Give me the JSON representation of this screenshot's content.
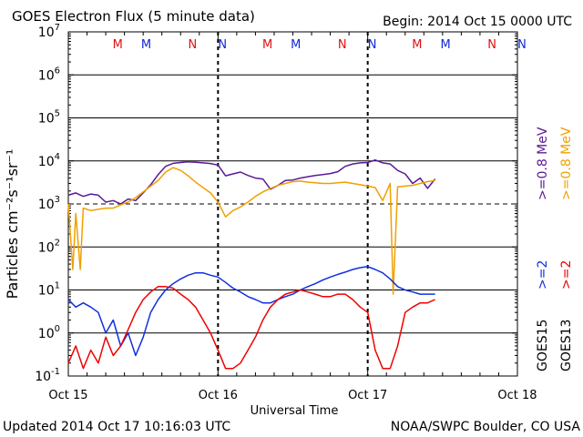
{
  "header": {
    "title": "GOES Electron Flux (5 minute data)",
    "begin": "Begin: 2014 Oct 15 0000 UTC"
  },
  "footer": {
    "updated": "Updated 2014 Oct 17 10:16:03 UTC",
    "credit": "NOAA/SWPC Boulder, CO USA"
  },
  "colors": {
    "goes15_08": "#5a1a96",
    "goes13_08": "#f0a000",
    "goes15_2": "#1030e0",
    "goes13_2": "#f00000",
    "marker_m": "#e01010",
    "marker_n": "#1028d8"
  },
  "markers": [
    {
      "label": "M",
      "day": 0.33,
      "color": "marker_m"
    },
    {
      "label": "M",
      "day": 0.52,
      "color": "marker_n"
    },
    {
      "label": "N",
      "day": 0.83,
      "color": "marker_m"
    },
    {
      "label": "N",
      "day": 1.03,
      "color": "marker_n"
    },
    {
      "label": "M",
      "day": 1.33,
      "color": "marker_m"
    },
    {
      "label": "M",
      "day": 1.52,
      "color": "marker_n"
    },
    {
      "label": "N",
      "day": 1.83,
      "color": "marker_m"
    },
    {
      "label": "N",
      "day": 2.03,
      "color": "marker_n"
    },
    {
      "label": "M",
      "day": 2.33,
      "color": "marker_m"
    },
    {
      "label": "M",
      "day": 2.52,
      "color": "marker_n"
    },
    {
      "label": "N",
      "day": 2.83,
      "color": "marker_m"
    },
    {
      "label": "N",
      "day": 3.03,
      "color": "marker_n"
    }
  ],
  "chart_data": {
    "type": "line",
    "xlabel": "Universal Time",
    "ylabel": "Particles cm⁻²s⁻¹sr⁻¹",
    "x_units": "days since 2014 Oct 15 0000 UTC",
    "xlim": [
      0,
      3
    ],
    "x_tick_labels": [
      "Oct 15",
      "Oct 16",
      "Oct 17",
      "Oct 18"
    ],
    "y_scale": "log",
    "ylim": [
      0.1,
      10000000
    ],
    "y_tick_labels": [
      {
        "base": "10",
        "exp": "-1"
      },
      {
        "base": "10",
        "exp": "0"
      },
      {
        "base": "10",
        "exp": "1"
      },
      {
        "base": "10",
        "exp": "2"
      },
      {
        "base": "10",
        "exp": "3"
      },
      {
        "base": "10",
        "exp": "4"
      },
      {
        "base": "10",
        "exp": "5"
      },
      {
        "base": "10",
        "exp": "6"
      },
      {
        "base": "10",
        "exp": "7"
      }
    ],
    "grid": "horizontal lines at each decade; dashed at 10^3 (alert threshold)",
    "legend_position": "right, vertical text",
    "legend": {
      "goes15_label": "GOES15",
      "goes13_label": "GOES13",
      "goes15_08": ">=0.8 MeV",
      "goes13_08": ">=0.8 MeV",
      "goes15_2": ">=2",
      "goes13_2": ">=2"
    },
    "series": [
      {
        "name": "GOES15 >=0.8 MeV",
        "color": "goes15_08",
        "x": [
          0.0,
          0.05,
          0.1,
          0.15,
          0.2,
          0.25,
          0.3,
          0.35,
          0.4,
          0.45,
          0.5,
          0.55,
          0.6,
          0.65,
          0.7,
          0.75,
          0.8,
          0.85,
          0.9,
          0.95,
          1.0,
          1.05,
          1.1,
          1.15,
          1.2,
          1.25,
          1.3,
          1.35,
          1.4,
          1.45,
          1.5,
          1.55,
          1.6,
          1.65,
          1.7,
          1.75,
          1.8,
          1.85,
          1.9,
          1.95,
          2.0,
          2.05,
          2.1,
          2.15,
          2.2,
          2.25,
          2.3,
          2.35,
          2.4,
          2.45
        ],
        "y": [
          1600,
          1800,
          1500,
          1700,
          1600,
          1100,
          1200,
          1000,
          1300,
          1200,
          1800,
          2800,
          4800,
          7500,
          8800,
          9200,
          9500,
          9300,
          9000,
          8700,
          8000,
          4500,
          5000,
          5500,
          4600,
          4000,
          3800,
          2200,
          2700,
          3500,
          3600,
          4000,
          4300,
          4600,
          4800,
          5100,
          5600,
          7500,
          8500,
          9000,
          9200,
          10500,
          9000,
          8500,
          6000,
          5000,
          3000,
          4000,
          2300,
          3800
        ]
      },
      {
        "name": "GOES13 >=0.8 MeV",
        "color": "goes13_08",
        "x": [
          0.0,
          0.03,
          0.05,
          0.08,
          0.1,
          0.15,
          0.2,
          0.25,
          0.3,
          0.35,
          0.4,
          0.45,
          0.5,
          0.55,
          0.6,
          0.65,
          0.7,
          0.75,
          0.8,
          0.85,
          0.9,
          0.95,
          1.0,
          1.05,
          1.1,
          1.15,
          1.2,
          1.25,
          1.3,
          1.35,
          1.4,
          1.45,
          1.5,
          1.55,
          1.6,
          1.65,
          1.7,
          1.75,
          1.8,
          1.85,
          1.9,
          1.95,
          2.0,
          2.05,
          2.1,
          2.15,
          2.17,
          2.2,
          2.25,
          2.3,
          2.35,
          2.4,
          2.45
        ],
        "y": [
          1000,
          30,
          600,
          30,
          800,
          700,
          750,
          800,
          800,
          950,
          1100,
          1400,
          1900,
          2600,
          3500,
          5500,
          7000,
          6000,
          4500,
          3200,
          2400,
          1800,
          1100,
          500,
          700,
          850,
          1100,
          1500,
          1900,
          2300,
          2700,
          3000,
          3300,
          3400,
          3200,
          3100,
          3000,
          3000,
          3100,
          3200,
          3000,
          2800,
          2600,
          2400,
          1200,
          3000,
          8,
          2500,
          2600,
          2700,
          3000,
          3300,
          3500
        ]
      },
      {
        "name": "GOES15 >=2",
        "color": "goes15_2",
        "x": [
          0.0,
          0.05,
          0.1,
          0.15,
          0.2,
          0.25,
          0.3,
          0.35,
          0.4,
          0.45,
          0.5,
          0.55,
          0.6,
          0.65,
          0.7,
          0.75,
          0.8,
          0.85,
          0.9,
          0.95,
          1.0,
          1.05,
          1.1,
          1.15,
          1.2,
          1.25,
          1.3,
          1.35,
          1.4,
          1.45,
          1.5,
          1.55,
          1.6,
          1.65,
          1.7,
          1.75,
          1.8,
          1.85,
          1.9,
          1.95,
          2.0,
          2.05,
          2.1,
          2.15,
          2.2,
          2.25,
          2.3,
          2.35,
          2.4,
          2.45
        ],
        "y": [
          6,
          4,
          5,
          4,
          3,
          1,
          2,
          0.5,
          1,
          0.3,
          0.8,
          3,
          6,
          10,
          14,
          18,
          22,
          25,
          25,
          22,
          20,
          15,
          11,
          9,
          7,
          6,
          5,
          5,
          6,
          7,
          8,
          10,
          12,
          14,
          17,
          20,
          23,
          26,
          30,
          33,
          35,
          30,
          25,
          18,
          12,
          10,
          9,
          8,
          8,
          8
        ]
      },
      {
        "name": "GOES13 >=2",
        "color": "goes13_2",
        "x": [
          0.0,
          0.05,
          0.1,
          0.15,
          0.2,
          0.25,
          0.3,
          0.35,
          0.4,
          0.45,
          0.5,
          0.55,
          0.6,
          0.65,
          0.7,
          0.75,
          0.8,
          0.85,
          0.9,
          0.95,
          1.0,
          1.05,
          1.1,
          1.15,
          1.2,
          1.25,
          1.3,
          1.35,
          1.4,
          1.45,
          1.5,
          1.55,
          1.6,
          1.65,
          1.7,
          1.75,
          1.8,
          1.85,
          1.9,
          1.95,
          2.0,
          2.05,
          2.1,
          2.15,
          2.2,
          2.25,
          2.3,
          2.35,
          2.4,
          2.45
        ],
        "y": [
          0.2,
          0.5,
          0.15,
          0.4,
          0.2,
          0.8,
          0.3,
          0.5,
          1.2,
          3,
          6,
          9,
          12,
          12,
          11,
          8,
          6,
          4,
          2,
          1,
          0.4,
          0.15,
          0.15,
          0.2,
          0.4,
          0.8,
          2,
          4,
          6,
          8,
          9,
          10,
          9,
          8,
          7,
          7,
          8,
          8,
          6,
          4,
          3,
          0.4,
          0.15,
          0.15,
          0.5,
          3,
          4,
          5,
          5,
          6
        ]
      }
    ]
  }
}
